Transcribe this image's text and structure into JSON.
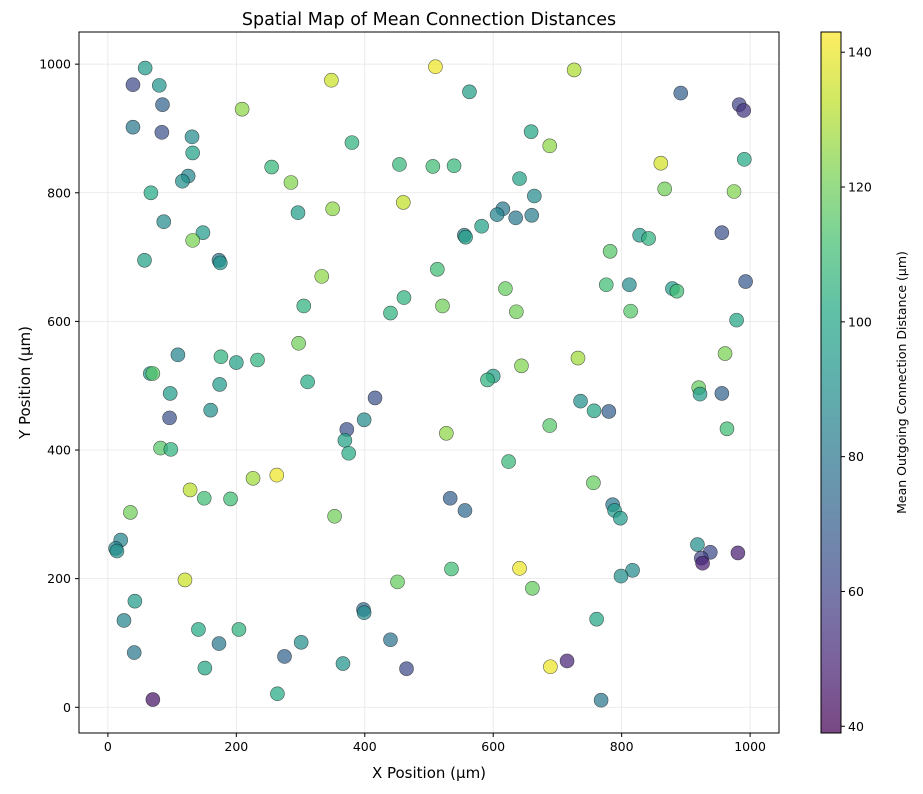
{
  "chart_data": {
    "type": "scatter",
    "title": "Spatial Map of Mean Connection Distances",
    "xlabel": "X Position (µm)",
    "ylabel": "Y Position (µm)",
    "xlim": [
      -45,
      1045
    ],
    "ylim": [
      -40,
      1050
    ],
    "xticks": [
      0,
      200,
      400,
      600,
      800,
      1000
    ],
    "yticks": [
      0,
      200,
      400,
      600,
      800,
      1000
    ],
    "xtick_labels": [
      "0",
      "200",
      "400",
      "600",
      "800",
      "1000"
    ],
    "ytick_labels": [
      "0",
      "200",
      "400",
      "600",
      "800",
      "1000"
    ],
    "grid": true,
    "colormap": "viridis",
    "colorbar": {
      "label": "Mean Outgoing Connection Distance (µm)",
      "range": [
        39,
        143
      ],
      "ticks": [
        40,
        60,
        80,
        100,
        120,
        140
      ],
      "tick_labels": [
        "40",
        "60",
        "80",
        "100",
        "120",
        "140"
      ]
    },
    "points": [
      {
        "x": 58,
        "y": 994,
        "c": 95
      },
      {
        "x": 39,
        "y": 968,
        "c": 62
      },
      {
        "x": 80,
        "y": 967,
        "c": 92
      },
      {
        "x": 85,
        "y": 937,
        "c": 72
      },
      {
        "x": 39,
        "y": 902,
        "c": 80
      },
      {
        "x": 84,
        "y": 894,
        "c": 65
      },
      {
        "x": 131,
        "y": 887,
        "c": 88
      },
      {
        "x": 132,
        "y": 862,
        "c": 98
      },
      {
        "x": 125,
        "y": 826,
        "c": 85
      },
      {
        "x": 116,
        "y": 818,
        "c": 90
      },
      {
        "x": 67,
        "y": 800,
        "c": 102
      },
      {
        "x": 87,
        "y": 755,
        "c": 88
      },
      {
        "x": 148,
        "y": 738,
        "c": 95
      },
      {
        "x": 132,
        "y": 726,
        "c": 122
      },
      {
        "x": 57,
        "y": 695,
        "c": 98
      },
      {
        "x": 173,
        "y": 695,
        "c": 80
      },
      {
        "x": 175,
        "y": 691,
        "c": 92
      },
      {
        "x": 209,
        "y": 930,
        "c": 125
      },
      {
        "x": 348,
        "y": 975,
        "c": 135
      },
      {
        "x": 510,
        "y": 996,
        "c": 140
      },
      {
        "x": 726,
        "y": 991,
        "c": 130
      },
      {
        "x": 563,
        "y": 957,
        "c": 97
      },
      {
        "x": 659,
        "y": 895,
        "c": 100
      },
      {
        "x": 380,
        "y": 878,
        "c": 105
      },
      {
        "x": 688,
        "y": 873,
        "c": 125
      },
      {
        "x": 255,
        "y": 840,
        "c": 107
      },
      {
        "x": 454,
        "y": 844,
        "c": 107
      },
      {
        "x": 539,
        "y": 842,
        "c": 107
      },
      {
        "x": 506,
        "y": 841,
        "c": 110
      },
      {
        "x": 285,
        "y": 816,
        "c": 123
      },
      {
        "x": 641,
        "y": 822,
        "c": 98
      },
      {
        "x": 460,
        "y": 785,
        "c": 133
      },
      {
        "x": 664,
        "y": 795,
        "c": 88
      },
      {
        "x": 350,
        "y": 775,
        "c": 125
      },
      {
        "x": 615,
        "y": 775,
        "c": 80
      },
      {
        "x": 296,
        "y": 769,
        "c": 96
      },
      {
        "x": 606,
        "y": 766,
        "c": 85
      },
      {
        "x": 635,
        "y": 761,
        "c": 80
      },
      {
        "x": 660,
        "y": 765,
        "c": 82
      },
      {
        "x": 582,
        "y": 748,
        "c": 98
      },
      {
        "x": 555,
        "y": 734,
        "c": 82
      },
      {
        "x": 557,
        "y": 731,
        "c": 98
      },
      {
        "x": 892,
        "y": 955,
        "c": 70
      },
      {
        "x": 983,
        "y": 937,
        "c": 60
      },
      {
        "x": 990,
        "y": 928,
        "c": 55
      },
      {
        "x": 991,
        "y": 852,
        "c": 102
      },
      {
        "x": 861,
        "y": 846,
        "c": 136
      },
      {
        "x": 867,
        "y": 806,
        "c": 120
      },
      {
        "x": 975,
        "y": 802,
        "c": 123
      },
      {
        "x": 956,
        "y": 738,
        "c": 65
      },
      {
        "x": 828,
        "y": 734,
        "c": 95
      },
      {
        "x": 842,
        "y": 729,
        "c": 105
      },
      {
        "x": 782,
        "y": 709,
        "c": 115
      },
      {
        "x": 993,
        "y": 662,
        "c": 68
      },
      {
        "x": 812,
        "y": 657,
        "c": 88
      },
      {
        "x": 776,
        "y": 657,
        "c": 110
      },
      {
        "x": 879,
        "y": 651,
        "c": 95
      },
      {
        "x": 886,
        "y": 647,
        "c": 110
      },
      {
        "x": 619,
        "y": 651,
        "c": 118
      },
      {
        "x": 333,
        "y": 670,
        "c": 125
      },
      {
        "x": 513,
        "y": 681,
        "c": 110
      },
      {
        "x": 461,
        "y": 637,
        "c": 105
      },
      {
        "x": 305,
        "y": 624,
        "c": 105
      },
      {
        "x": 521,
        "y": 624,
        "c": 120
      },
      {
        "x": 440,
        "y": 613,
        "c": 105
      },
      {
        "x": 636,
        "y": 615,
        "c": 120
      },
      {
        "x": 814,
        "y": 616,
        "c": 115
      },
      {
        "x": 979,
        "y": 602,
        "c": 100
      },
      {
        "x": 961,
        "y": 550,
        "c": 122
      },
      {
        "x": 109,
        "y": 548,
        "c": 85
      },
      {
        "x": 176,
        "y": 545,
        "c": 105
      },
      {
        "x": 233,
        "y": 540,
        "c": 105
      },
      {
        "x": 200,
        "y": 536,
        "c": 98
      },
      {
        "x": 297,
        "y": 566,
        "c": 120
      },
      {
        "x": 732,
        "y": 543,
        "c": 128
      },
      {
        "x": 644,
        "y": 531,
        "c": 123
      },
      {
        "x": 600,
        "y": 515,
        "c": 97
      },
      {
        "x": 591,
        "y": 509,
        "c": 105
      },
      {
        "x": 66,
        "y": 519,
        "c": 95
      },
      {
        "x": 70,
        "y": 519,
        "c": 115
      },
      {
        "x": 311,
        "y": 506,
        "c": 102
      },
      {
        "x": 174,
        "y": 502,
        "c": 95
      },
      {
        "x": 97,
        "y": 488,
        "c": 95
      },
      {
        "x": 416,
        "y": 481,
        "c": 65
      },
      {
        "x": 920,
        "y": 497,
        "c": 118
      },
      {
        "x": 922,
        "y": 487,
        "c": 95
      },
      {
        "x": 956,
        "y": 488,
        "c": 72
      },
      {
        "x": 736,
        "y": 476,
        "c": 90
      },
      {
        "x": 160,
        "y": 462,
        "c": 90
      },
      {
        "x": 757,
        "y": 461,
        "c": 100
      },
      {
        "x": 780,
        "y": 460,
        "c": 70
      },
      {
        "x": 96,
        "y": 450,
        "c": 65
      },
      {
        "x": 399,
        "y": 447,
        "c": 88
      },
      {
        "x": 372,
        "y": 432,
        "c": 65
      },
      {
        "x": 369,
        "y": 415,
        "c": 98
      },
      {
        "x": 964,
        "y": 433,
        "c": 110
      },
      {
        "x": 527,
        "y": 426,
        "c": 125
      },
      {
        "x": 688,
        "y": 438,
        "c": 115
      },
      {
        "x": 82,
        "y": 403,
        "c": 115
      },
      {
        "x": 98,
        "y": 401,
        "c": 105
      },
      {
        "x": 375,
        "y": 395,
        "c": 102
      },
      {
        "x": 624,
        "y": 382,
        "c": 108
      },
      {
        "x": 263,
        "y": 361,
        "c": 140
      },
      {
        "x": 226,
        "y": 356,
        "c": 128
      },
      {
        "x": 756,
        "y": 349,
        "c": 118
      },
      {
        "x": 128,
        "y": 338,
        "c": 132
      },
      {
        "x": 150,
        "y": 325,
        "c": 110
      },
      {
        "x": 191,
        "y": 324,
        "c": 110
      },
      {
        "x": 533,
        "y": 325,
        "c": 70
      },
      {
        "x": 35,
        "y": 303,
        "c": 120
      },
      {
        "x": 556,
        "y": 306,
        "c": 75
      },
      {
        "x": 353,
        "y": 297,
        "c": 120
      },
      {
        "x": 786,
        "y": 315,
        "c": 80
      },
      {
        "x": 789,
        "y": 306,
        "c": 95
      },
      {
        "x": 798,
        "y": 294,
        "c": 95
      },
      {
        "x": 20,
        "y": 260,
        "c": 85
      },
      {
        "x": 12,
        "y": 247,
        "c": 85
      },
      {
        "x": 14,
        "y": 243,
        "c": 90
      },
      {
        "x": 918,
        "y": 253,
        "c": 90
      },
      {
        "x": 938,
        "y": 241,
        "c": 62
      },
      {
        "x": 924,
        "y": 232,
        "c": 60
      },
      {
        "x": 926,
        "y": 224,
        "c": 48
      },
      {
        "x": 981,
        "y": 240,
        "c": 48
      },
      {
        "x": 535,
        "y": 215,
        "c": 110
      },
      {
        "x": 641,
        "y": 216,
        "c": 140
      },
      {
        "x": 817,
        "y": 213,
        "c": 88
      },
      {
        "x": 799,
        "y": 204,
        "c": 90
      },
      {
        "x": 120,
        "y": 198,
        "c": 135
      },
      {
        "x": 451,
        "y": 195,
        "c": 118
      },
      {
        "x": 661,
        "y": 185,
        "c": 118
      },
      {
        "x": 42,
        "y": 165,
        "c": 95
      },
      {
        "x": 398,
        "y": 152,
        "c": 75
      },
      {
        "x": 399,
        "y": 147,
        "c": 88
      },
      {
        "x": 25,
        "y": 135,
        "c": 85
      },
      {
        "x": 761,
        "y": 137,
        "c": 100
      },
      {
        "x": 141,
        "y": 121,
        "c": 102
      },
      {
        "x": 204,
        "y": 121,
        "c": 105
      },
      {
        "x": 440,
        "y": 105,
        "c": 78
      },
      {
        "x": 301,
        "y": 101,
        "c": 90
      },
      {
        "x": 173,
        "y": 99,
        "c": 80
      },
      {
        "x": 41,
        "y": 85,
        "c": 80
      },
      {
        "x": 275,
        "y": 79,
        "c": 72
      },
      {
        "x": 366,
        "y": 68,
        "c": 92
      },
      {
        "x": 715,
        "y": 72,
        "c": 50
      },
      {
        "x": 689,
        "y": 63,
        "c": 140
      },
      {
        "x": 465,
        "y": 60,
        "c": 62
      },
      {
        "x": 151,
        "y": 61,
        "c": 100
      },
      {
        "x": 70,
        "y": 12,
        "c": 45
      },
      {
        "x": 264,
        "y": 21,
        "c": 102
      },
      {
        "x": 768,
        "y": 11,
        "c": 80
      }
    ]
  }
}
